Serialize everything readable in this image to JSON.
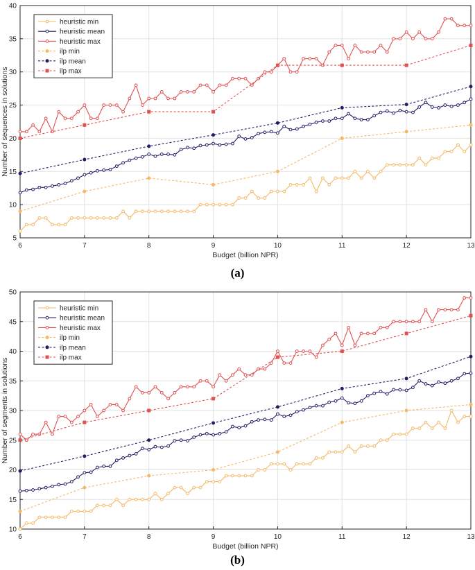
{
  "chart_data": [
    {
      "type": "line",
      "panel": "(a)",
      "xlabel": "Budget (billion NPR)",
      "ylabel": "Number of sequences in solutions",
      "xlim": [
        6,
        13
      ],
      "ylim": [
        5,
        40
      ],
      "xticks": [
        6,
        7,
        8,
        9,
        10,
        11,
        12,
        13
      ],
      "yticks": [
        5,
        10,
        15,
        20,
        25,
        30,
        35,
        40
      ],
      "grid": true,
      "legend_position": "top-left",
      "series": [
        {
          "name": "heuristic min",
          "color": "#f5b865",
          "style": "solid",
          "marker": "circle",
          "x": [
            6.0,
            6.1,
            6.2,
            6.3,
            6.4,
            6.5,
            6.6,
            6.7,
            6.8,
            6.9,
            7.0,
            7.1,
            7.2,
            7.3,
            7.4,
            7.5,
            7.6,
            7.7,
            7.8,
            7.9,
            8.0,
            8.1,
            8.2,
            8.3,
            8.4,
            8.5,
            8.6,
            8.7,
            8.8,
            8.9,
            9.0,
            9.1,
            9.2,
            9.3,
            9.4,
            9.5,
            9.6,
            9.7,
            9.8,
            9.9,
            10.0,
            10.1,
            10.2,
            10.3,
            10.4,
            10.5,
            10.6,
            10.7,
            10.8,
            10.9,
            11.0,
            11.1,
            11.2,
            11.3,
            11.4,
            11.5,
            11.6,
            11.7,
            11.8,
            11.9,
            12.0,
            12.1,
            12.2,
            12.3,
            12.4,
            12.5,
            12.6,
            12.7,
            12.8,
            12.9,
            13.0
          ],
          "y": [
            6,
            7,
            7,
            8,
            8,
            7,
            7,
            7,
            8,
            8,
            8,
            8,
            8,
            8,
            8,
            8,
            9,
            8,
            9,
            9,
            9,
            9,
            9,
            9,
            9,
            9,
            9,
            9,
            10,
            10,
            10,
            10,
            10,
            10,
            11,
            11,
            12,
            11,
            11,
            12,
            12,
            12,
            13,
            13,
            13,
            14,
            12,
            14,
            13,
            14,
            14,
            14,
            15,
            14,
            15,
            14,
            15,
            16,
            16,
            16,
            16,
            16,
            17,
            16,
            17,
            17,
            18,
            18,
            19,
            18,
            19
          ]
        },
        {
          "name": "heuristic mean",
          "color": "#1f1f66",
          "style": "solid",
          "marker": "circle",
          "x": [
            6.0,
            6.1,
            6.2,
            6.3,
            6.4,
            6.5,
            6.6,
            6.7,
            6.8,
            6.9,
            7.0,
            7.1,
            7.2,
            7.3,
            7.4,
            7.5,
            7.6,
            7.7,
            7.8,
            7.9,
            8.0,
            8.1,
            8.2,
            8.3,
            8.4,
            8.5,
            8.6,
            8.7,
            8.8,
            8.9,
            9.0,
            9.1,
            9.2,
            9.3,
            9.4,
            9.5,
            9.6,
            9.7,
            9.8,
            9.9,
            10.0,
            10.1,
            10.2,
            10.3,
            10.4,
            10.5,
            10.6,
            10.7,
            10.8,
            10.9,
            11.0,
            11.1,
            11.2,
            11.3,
            11.4,
            11.5,
            11.6,
            11.7,
            11.8,
            11.9,
            12.0,
            12.1,
            12.2,
            12.3,
            12.4,
            12.5,
            12.6,
            12.7,
            12.8,
            12.9,
            13.0
          ],
          "y": [
            11.8,
            12.2,
            12.3,
            12.6,
            12.6,
            12.8,
            13.0,
            13.2,
            13.6,
            14.0,
            14.5,
            14.8,
            15.1,
            15.2,
            15.3,
            15.8,
            16.3,
            16.7,
            17.0,
            17.2,
            17.6,
            17.3,
            17.6,
            17.6,
            17.5,
            18.3,
            18.6,
            18.5,
            18.9,
            19.0,
            19.2,
            19.0,
            19.1,
            19.2,
            20.3,
            19.9,
            20.1,
            20.7,
            20.9,
            21.0,
            20.8,
            21.8,
            21.3,
            21.4,
            21.8,
            22.1,
            22.4,
            22.6,
            22.6,
            23.0,
            23.0,
            23.7,
            23.0,
            22.8,
            22.8,
            23.4,
            23.9,
            24.1,
            23.8,
            24.2,
            24.0,
            23.9,
            24.7,
            25.4,
            24.7,
            24.6,
            25.0,
            24.8,
            25.0,
            25.4,
            25.9
          ]
        },
        {
          "name": "heuristic max",
          "color": "#e05050",
          "style": "solid",
          "marker": "circle",
          "x": [
            6.0,
            6.1,
            6.2,
            6.3,
            6.4,
            6.5,
            6.6,
            6.7,
            6.8,
            6.9,
            7.0,
            7.1,
            7.2,
            7.3,
            7.4,
            7.5,
            7.6,
            7.7,
            7.8,
            7.9,
            8.0,
            8.1,
            8.2,
            8.3,
            8.4,
            8.5,
            8.6,
            8.7,
            8.8,
            8.9,
            9.0,
            9.1,
            9.2,
            9.3,
            9.4,
            9.5,
            9.6,
            9.7,
            9.8,
            9.9,
            10.0,
            10.1,
            10.2,
            10.3,
            10.4,
            10.5,
            10.6,
            10.7,
            10.8,
            10.9,
            11.0,
            11.1,
            11.2,
            11.3,
            11.4,
            11.5,
            11.6,
            11.7,
            11.8,
            11.9,
            12.0,
            12.1,
            12.2,
            12.3,
            12.4,
            12.5,
            12.6,
            12.7,
            12.8,
            12.9,
            13.0
          ],
          "y": [
            21,
            21,
            22,
            21,
            23,
            21,
            24,
            23,
            23,
            24,
            25,
            23,
            23,
            25,
            25,
            25,
            24,
            26,
            28,
            25,
            26,
            26,
            27,
            26,
            26,
            27,
            27,
            27,
            28,
            28,
            27,
            28,
            28,
            29,
            29,
            29,
            28,
            29,
            30,
            30,
            31,
            32,
            30,
            30,
            32,
            32,
            32,
            31,
            33,
            34,
            34,
            32,
            34,
            33,
            33,
            33,
            34,
            33,
            35,
            35,
            36,
            35,
            36,
            35,
            35,
            36,
            38,
            38,
            37,
            37,
            37
          ]
        },
        {
          "name": "ilp min",
          "color": "#f5b865",
          "style": "dashed",
          "marker": "circle",
          "x": [
            6,
            7,
            8,
            9,
            10,
            11,
            12,
            13
          ],
          "y": [
            9,
            12,
            14,
            13,
            15,
            20,
            21,
            22
          ]
        },
        {
          "name": "ilp mean",
          "color": "#1f1f66",
          "style": "dashed",
          "marker": "circle",
          "x": [
            6,
            7,
            8,
            9,
            10,
            11,
            12,
            13
          ],
          "y": [
            14.7,
            16.8,
            18.8,
            20.5,
            22.3,
            24.6,
            25.1,
            27.8
          ]
        },
        {
          "name": "ilp max",
          "color": "#e05050",
          "style": "dashed",
          "marker": "square",
          "x": [
            6,
            7,
            8,
            9,
            10,
            11,
            12,
            13
          ],
          "y": [
            20,
            22,
            24,
            24,
            31,
            31,
            31,
            34
          ]
        }
      ]
    },
    {
      "type": "line",
      "panel": "(b)",
      "xlabel": "Budget (billion NPR)",
      "ylabel": "Number of segments in solutions",
      "xlim": [
        6,
        13
      ],
      "ylim": [
        10,
        50
      ],
      "xticks": [
        6,
        7,
        8,
        9,
        10,
        11,
        12,
        13
      ],
      "yticks": [
        10,
        15,
        20,
        25,
        30,
        35,
        40,
        45,
        50
      ],
      "grid": true,
      "legend_position": "top-left",
      "series": [
        {
          "name": "heuristic min",
          "color": "#f5b865",
          "style": "solid",
          "marker": "circle",
          "x": [
            6.0,
            6.1,
            6.2,
            6.3,
            6.4,
            6.5,
            6.6,
            6.7,
            6.8,
            6.9,
            7.0,
            7.1,
            7.2,
            7.3,
            7.4,
            7.5,
            7.6,
            7.7,
            7.8,
            7.9,
            8.0,
            8.1,
            8.2,
            8.3,
            8.4,
            8.5,
            8.6,
            8.7,
            8.8,
            8.9,
            9.0,
            9.1,
            9.2,
            9.3,
            9.4,
            9.5,
            9.6,
            9.7,
            9.8,
            9.9,
            10.0,
            10.1,
            10.2,
            10.3,
            10.4,
            10.5,
            10.6,
            10.7,
            10.8,
            10.9,
            11.0,
            11.1,
            11.2,
            11.3,
            11.4,
            11.5,
            11.6,
            11.7,
            11.8,
            11.9,
            12.0,
            12.1,
            12.2,
            12.3,
            12.4,
            12.5,
            12.6,
            12.7,
            12.8,
            12.9,
            13.0
          ],
          "y": [
            10,
            11,
            11,
            12,
            12,
            12,
            12,
            12,
            13,
            13,
            13,
            13,
            14,
            14,
            14,
            15,
            14,
            15,
            15,
            15,
            15,
            16,
            15,
            16,
            17,
            17,
            16,
            17,
            17,
            18,
            18,
            18,
            19,
            19,
            19,
            19,
            19,
            20,
            20,
            21,
            21,
            21,
            20,
            21,
            21,
            21,
            22,
            22,
            23,
            23,
            23,
            24,
            23,
            24,
            24,
            24,
            25,
            25,
            26,
            26,
            26,
            27,
            27,
            28,
            27,
            28,
            27,
            30,
            28,
            29,
            29
          ]
        },
        {
          "name": "heuristic mean",
          "color": "#1f1f66",
          "style": "solid",
          "marker": "circle",
          "x": [
            6.0,
            6.1,
            6.2,
            6.3,
            6.4,
            6.5,
            6.6,
            6.7,
            6.8,
            6.9,
            7.0,
            7.1,
            7.2,
            7.3,
            7.4,
            7.5,
            7.6,
            7.7,
            7.8,
            7.9,
            8.0,
            8.1,
            8.2,
            8.3,
            8.4,
            8.5,
            8.6,
            8.7,
            8.8,
            8.9,
            9.0,
            9.1,
            9.2,
            9.3,
            9.4,
            9.5,
            9.6,
            9.7,
            9.8,
            9.9,
            10.0,
            10.1,
            10.2,
            10.3,
            10.4,
            10.5,
            10.6,
            10.7,
            10.8,
            10.9,
            11.0,
            11.1,
            11.2,
            11.3,
            11.4,
            11.5,
            11.6,
            11.7,
            11.8,
            11.9,
            12.0,
            12.1,
            12.2,
            12.3,
            12.4,
            12.5,
            12.6,
            12.7,
            12.8,
            12.9,
            13.0
          ],
          "y": [
            16.4,
            16.5,
            16.6,
            16.8,
            17.0,
            17.2,
            17.5,
            17.6,
            18.0,
            18.8,
            19.5,
            19.6,
            20.4,
            20.6,
            20.6,
            21.6,
            22.0,
            22.4,
            22.7,
            23.6,
            23.4,
            23.9,
            23.8,
            24.0,
            24.9,
            25.0,
            24.9,
            25.5,
            25.9,
            26.1,
            25.9,
            26.1,
            26.4,
            27.3,
            27.1,
            27.4,
            28.1,
            28.4,
            28.5,
            28.4,
            29.4,
            29.0,
            29.2,
            29.8,
            30.1,
            30.5,
            30.8,
            30.8,
            31.4,
            31.6,
            32.1,
            31.3,
            31.2,
            31.6,
            32.5,
            32.9,
            33.2,
            32.8,
            33.5,
            33.5,
            33.4,
            33.9,
            35.0,
            34.5,
            34.2,
            34.8,
            34.6,
            35.0,
            35.4,
            36.2,
            36.3
          ]
        },
        {
          "name": "heuristic max",
          "color": "#e05050",
          "style": "solid",
          "marker": "circle",
          "x": [
            6.0,
            6.1,
            6.2,
            6.3,
            6.4,
            6.5,
            6.6,
            6.7,
            6.8,
            6.9,
            7.0,
            7.1,
            7.2,
            7.3,
            7.4,
            7.5,
            7.6,
            7.7,
            7.8,
            7.9,
            8.0,
            8.1,
            8.2,
            8.3,
            8.4,
            8.5,
            8.6,
            8.7,
            8.8,
            8.9,
            9.0,
            9.1,
            9.2,
            9.3,
            9.4,
            9.5,
            9.6,
            9.7,
            9.8,
            9.9,
            10.0,
            10.1,
            10.2,
            10.3,
            10.4,
            10.5,
            10.6,
            10.7,
            10.8,
            10.9,
            11.0,
            11.1,
            11.2,
            11.3,
            11.4,
            11.5,
            11.6,
            11.7,
            11.8,
            11.9,
            12.0,
            12.1,
            12.2,
            12.3,
            12.4,
            12.5,
            12.6,
            12.7,
            12.8,
            12.9,
            13.0
          ],
          "y": [
            26,
            25,
            26,
            26,
            28,
            26,
            29,
            29,
            28,
            29,
            30,
            31,
            29,
            30,
            31,
            31,
            30,
            32,
            34,
            33,
            33,
            34,
            33,
            32,
            33,
            34,
            34,
            34,
            35,
            35,
            34,
            36,
            35,
            36,
            37,
            36,
            36,
            37,
            37,
            38,
            40,
            38,
            38,
            40,
            40,
            40,
            39,
            41,
            42,
            43,
            41,
            44,
            41,
            43,
            43,
            43,
            44,
            44,
            45,
            45,
            45,
            45,
            45,
            47,
            45,
            47,
            47,
            47,
            47,
            49,
            49
          ]
        },
        {
          "name": "ilp min",
          "color": "#f5b865",
          "style": "dashed",
          "marker": "circle",
          "x": [
            6,
            7,
            8,
            9,
            10,
            11,
            12,
            13
          ],
          "y": [
            13,
            17,
            19,
            20,
            23,
            28,
            30,
            31
          ]
        },
        {
          "name": "ilp mean",
          "color": "#1f1f66",
          "style": "dashed",
          "marker": "circle",
          "x": [
            6,
            7,
            8,
            9,
            10,
            11,
            12,
            13
          ],
          "y": [
            19.8,
            22.3,
            25.0,
            27.9,
            30.6,
            33.7,
            35.4,
            39.1
          ]
        },
        {
          "name": "ilp max",
          "color": "#e05050",
          "style": "dashed",
          "marker": "square",
          "x": [
            6,
            7,
            8,
            9,
            10,
            11,
            12,
            13
          ],
          "y": [
            25,
            28,
            30,
            32,
            39,
            40,
            43,
            46
          ]
        }
      ]
    }
  ],
  "figure": {
    "panel_a_label": "(a)",
    "panel_b_label": "(b)"
  }
}
